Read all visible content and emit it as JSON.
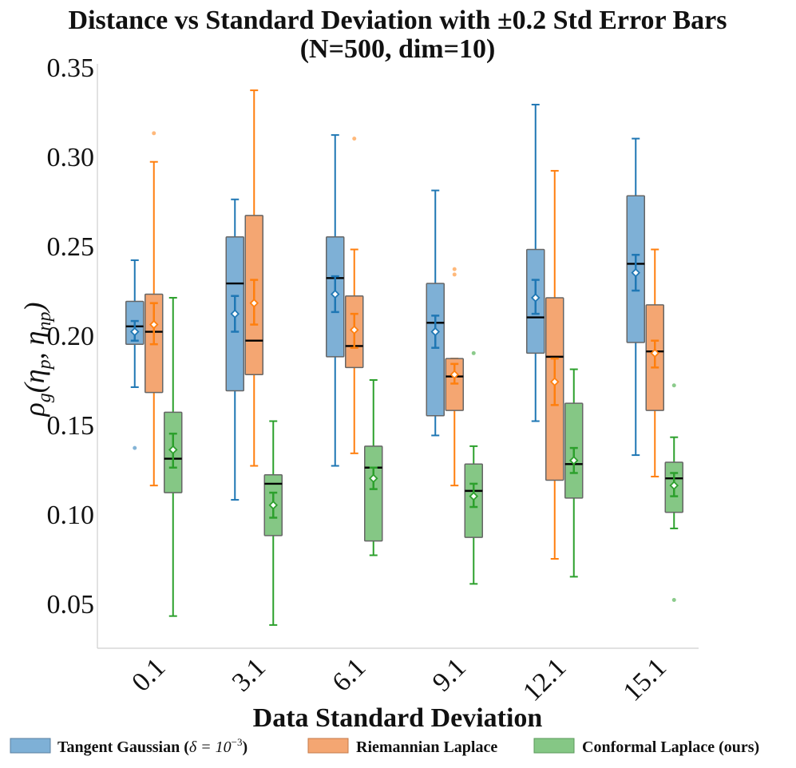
{
  "chart_data": {
    "type": "box",
    "title_line1": "Distance vs Standard Deviation with ±0.2 Std Error Bars",
    "title_line2": "(N=500, dim=10)",
    "xlabel": "Data Standard Deviation",
    "ylabel": "ρg(ηp, ηnp)",
    "ylim": [
      0.025,
      0.35
    ],
    "yticks": [
      0.05,
      0.1,
      0.15,
      0.2,
      0.25,
      0.3,
      0.35
    ],
    "ytick_labels": [
      "0.05",
      "0.10",
      "0.15",
      "0.20",
      "0.25",
      "0.30",
      "0.35"
    ],
    "categories": [
      "0.1",
      "3.1",
      "6.1",
      "9.1",
      "12.1",
      "15.1"
    ],
    "series": [
      {
        "name": "Tangent Gaussian (δ = 10⁻³)",
        "legend_label": "Tangent Gaussian (",
        "legend_math": "δ = 10",
        "legend_exp": "−3",
        "legend_close": ")",
        "color": "#1f77b4",
        "fill": "#7eb0d6",
        "boxes": [
          {
            "whislo": 0.171,
            "q1": 0.195,
            "med": 0.205,
            "q3": 0.219,
            "whishi": 0.242,
            "mean": 0.202,
            "err_lo": 0.197,
            "err_hi": 0.208,
            "fliers": [
              0.137
            ]
          },
          {
            "whislo": 0.108,
            "q1": 0.169,
            "med": 0.229,
            "q3": 0.255,
            "whishi": 0.276,
            "mean": 0.212,
            "err_lo": 0.202,
            "err_hi": 0.222,
            "fliers": []
          },
          {
            "whislo": 0.127,
            "q1": 0.188,
            "med": 0.232,
            "q3": 0.255,
            "whishi": 0.312,
            "mean": 0.223,
            "err_lo": 0.213,
            "err_hi": 0.233,
            "fliers": []
          },
          {
            "whislo": 0.144,
            "q1": 0.155,
            "med": 0.207,
            "q3": 0.229,
            "whishi": 0.281,
            "mean": 0.202,
            "err_lo": 0.193,
            "err_hi": 0.211,
            "fliers": []
          },
          {
            "whislo": 0.152,
            "q1": 0.19,
            "med": 0.21,
            "q3": 0.248,
            "whishi": 0.329,
            "mean": 0.221,
            "err_lo": 0.212,
            "err_hi": 0.231,
            "fliers": []
          },
          {
            "whislo": 0.133,
            "q1": 0.196,
            "med": 0.24,
            "q3": 0.278,
            "whishi": 0.31,
            "mean": 0.235,
            "err_lo": 0.225,
            "err_hi": 0.245,
            "fliers": []
          }
        ]
      },
      {
        "name": "Riemannian Laplace",
        "legend_label": "Riemannian Laplace",
        "color": "#ff7f0e",
        "fill": "#f4a672",
        "boxes": [
          {
            "whislo": 0.116,
            "q1": 0.168,
            "med": 0.202,
            "q3": 0.223,
            "whishi": 0.297,
            "mean": 0.206,
            "err_lo": 0.195,
            "err_hi": 0.218,
            "fliers": [
              0.313
            ]
          },
          {
            "whislo": 0.127,
            "q1": 0.178,
            "med": 0.197,
            "q3": 0.267,
            "whishi": 0.337,
            "mean": 0.218,
            "err_lo": 0.206,
            "err_hi": 0.231,
            "fliers": []
          },
          {
            "whislo": 0.134,
            "q1": 0.182,
            "med": 0.194,
            "q3": 0.222,
            "whishi": 0.248,
            "mean": 0.203,
            "err_lo": 0.193,
            "err_hi": 0.212,
            "fliers": [
              0.31
            ]
          },
          {
            "whislo": 0.116,
            "q1": 0.158,
            "med": 0.177,
            "q3": 0.187,
            "whishi": 0.187,
            "mean": 0.178,
            "err_lo": 0.173,
            "err_hi": 0.184,
            "fliers": [
              0.234,
              0.237
            ]
          },
          {
            "whislo": 0.075,
            "q1": 0.119,
            "med": 0.188,
            "q3": 0.221,
            "whishi": 0.292,
            "mean": 0.174,
            "err_lo": 0.161,
            "err_hi": 0.187,
            "fliers": []
          },
          {
            "whislo": 0.121,
            "q1": 0.158,
            "med": 0.191,
            "q3": 0.217,
            "whishi": 0.248,
            "mean": 0.19,
            "err_lo": 0.182,
            "err_hi": 0.197,
            "fliers": []
          }
        ]
      },
      {
        "name": "Conformal Laplace (ours)",
        "legend_label": "Conformal Laplace (ours)",
        "color": "#2ca02c",
        "fill": "#85c785",
        "boxes": [
          {
            "whislo": 0.043,
            "q1": 0.112,
            "med": 0.131,
            "q3": 0.157,
            "whishi": 0.221,
            "mean": 0.136,
            "err_lo": 0.126,
            "err_hi": 0.145,
            "fliers": []
          },
          {
            "whislo": 0.038,
            "q1": 0.088,
            "med": 0.117,
            "q3": 0.122,
            "whishi": 0.152,
            "mean": 0.105,
            "err_lo": 0.098,
            "err_hi": 0.112,
            "fliers": []
          },
          {
            "whislo": 0.077,
            "q1": 0.085,
            "med": 0.126,
            "q3": 0.138,
            "whishi": 0.175,
            "mean": 0.12,
            "err_lo": 0.114,
            "err_hi": 0.126,
            "fliers": []
          },
          {
            "whislo": 0.061,
            "q1": 0.087,
            "med": 0.113,
            "q3": 0.128,
            "whishi": 0.138,
            "mean": 0.11,
            "err_lo": 0.104,
            "err_hi": 0.117,
            "fliers": [
              0.19
            ]
          },
          {
            "whislo": 0.065,
            "q1": 0.109,
            "med": 0.128,
            "q3": 0.162,
            "whishi": 0.181,
            "mean": 0.13,
            "err_lo": 0.123,
            "err_hi": 0.137,
            "fliers": []
          },
          {
            "whislo": 0.092,
            "q1": 0.101,
            "med": 0.12,
            "q3": 0.129,
            "whishi": 0.143,
            "mean": 0.116,
            "err_lo": 0.11,
            "err_hi": 0.123,
            "fliers": [
              0.052,
              0.172
            ]
          }
        ]
      }
    ],
    "legend_position": "bottom"
  }
}
